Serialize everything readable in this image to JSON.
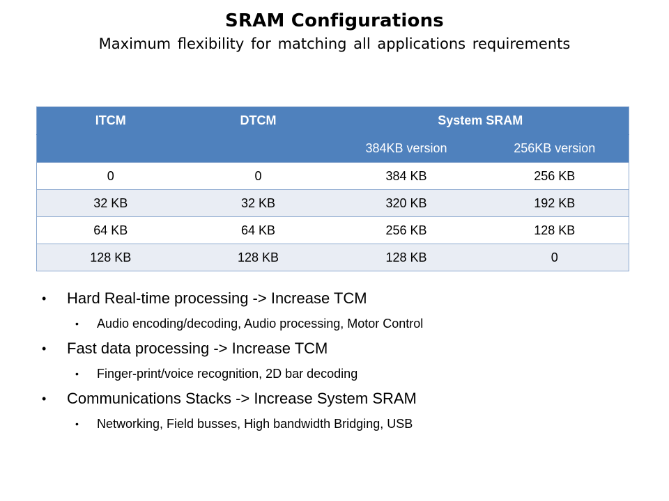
{
  "title": "SRAM Configurations",
  "subtitle": "Maximum flexibility for matching all applications requirements",
  "table": {
    "headers": [
      "ITCM",
      "DTCM",
      "System SRAM"
    ],
    "subheaders": [
      "",
      "",
      "384KB version",
      "256KB version"
    ],
    "rows": [
      [
        "0",
        "0",
        "384 KB",
        "256 KB"
      ],
      [
        "32 KB",
        "32 KB",
        "320 KB",
        "192 KB"
      ],
      [
        "64 KB",
        "64 KB",
        "256 KB",
        "128 KB"
      ],
      [
        "128 KB",
        "128 KB",
        "128 KB",
        "0"
      ]
    ]
  },
  "bullets": [
    {
      "text": "Hard Real-time processing -> Increase TCM",
      "sub": "Audio encoding/decoding, Audio processing, Motor Control"
    },
    {
      "text": "Fast data processing -> Increase TCM",
      "sub": "Finger-print/voice recognition, 2D bar decoding"
    },
    {
      "text": "Communications Stacks -> Increase System SRAM",
      "sub": "Networking, Field busses, High bandwidth Bridging, USB"
    }
  ],
  "bullet_glyph": "•",
  "colors": {
    "header_bg": "#4f81bd",
    "band_bg": "#e9edf4",
    "border": "#8ba8cf"
  }
}
